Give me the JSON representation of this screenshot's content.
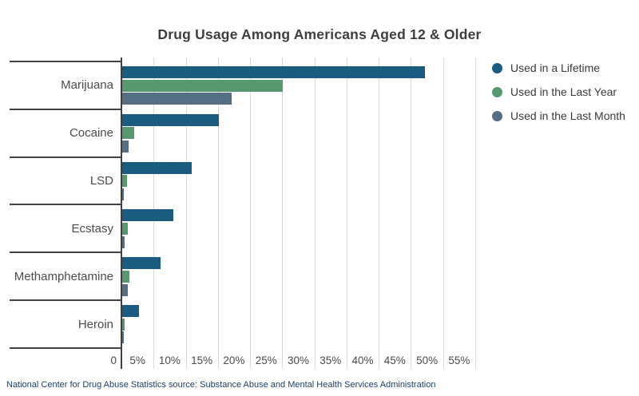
{
  "page": {
    "title": "Drug Usage Among Americans Aged 12 & Older",
    "source_note": "National Center for Drug Abuse Statistics source: Substance Abuse and Mental Health Services Administration"
  },
  "colors": {
    "series_lifetime": "#1A5B7F",
    "series_last_year": "#569971",
    "series_last_month": "#546E83",
    "gridline": "#D9D9D9",
    "axis_line": "#3F3F3F",
    "title_text": "#3E3E3E",
    "label_text": "#4B4B4B",
    "source_text": "#20406A"
  },
  "chart_data": {
    "type": "bar",
    "orientation": "horizontal",
    "title": "Drug Usage Among Americans Aged 12 & Older",
    "categories": [
      "Marijuana",
      "Cocaine",
      "LSD",
      "Ecstasy",
      "Methamphetamine",
      "Heroin"
    ],
    "series": [
      {
        "name": "Used in a Lifetime",
        "key": "lifetime",
        "color": "#1A5B7F",
        "values": [
          47.1,
          15.0,
          10.8,
          8.0,
          5.9,
          2.6
        ]
      },
      {
        "name": "Used in the Last Year",
        "key": "last-year",
        "color": "#569971",
        "values": [
          24.9,
          1.9,
          0.8,
          0.9,
          1.1,
          0.4
        ]
      },
      {
        "name": "Used in the Last Month",
        "key": "last-month",
        "color": "#546E83",
        "values": [
          17.0,
          1.0,
          0.3,
          0.4,
          0.9,
          0.2
        ]
      }
    ],
    "x_axis": {
      "ticks": [
        "0",
        "5%",
        "10%",
        "15%",
        "20%",
        "25%",
        "30%",
        "35%",
        "40%",
        "45%",
        "50%",
        "55%"
      ],
      "min": 0,
      "max": 55,
      "unit": "%"
    },
    "grid": true,
    "legend_position": "right"
  }
}
